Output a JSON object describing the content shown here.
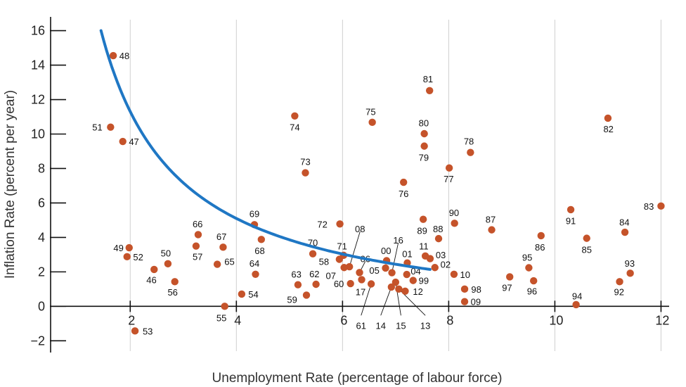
{
  "chart_data": {
    "type": "scatter",
    "xlabel": "Unemployment Rate (percentage of labour force)",
    "ylabel": "Inflation Rate (percent per year)",
    "xlim": [
      0.5,
      12.1
    ],
    "ylim": [
      -2.6,
      16.8
    ],
    "x_ticks": [
      2,
      4,
      6,
      8,
      10,
      12
    ],
    "y_ticks": [
      -2,
      0,
      2,
      4,
      6,
      8,
      10,
      12,
      14,
      16
    ],
    "grid": {
      "vertical": true,
      "horizontal": false
    },
    "colors": {
      "points": "#c5532a",
      "curve": "#1f77c4",
      "axis": "#111111",
      "grid": "#cfcfcf"
    },
    "points": [
      {
        "label": "48",
        "x": 1.68,
        "y": 14.55,
        "lx": 1.89,
        "ly": 14.55
      },
      {
        "label": "51",
        "x": 1.63,
        "y": 10.4,
        "lx": 1.38,
        "ly": 10.4
      },
      {
        "label": "47",
        "x": 1.86,
        "y": 9.57,
        "lx": 2.07,
        "ly": 9.57
      },
      {
        "label": "49",
        "x": 1.98,
        "y": 3.4,
        "lx": 1.78,
        "ly": 3.4
      },
      {
        "label": "52",
        "x": 1.94,
        "y": 2.88,
        "lx": 2.15,
        "ly": 2.88
      },
      {
        "label": "53",
        "x": 2.09,
        "y": -1.43,
        "lx": 2.33,
        "ly": -1.43
      },
      {
        "label": "46",
        "x": 2.45,
        "y": 2.14,
        "lx": 2.4,
        "ly": 1.55
      },
      {
        "label": "50",
        "x": 2.71,
        "y": 2.47,
        "lx": 2.67,
        "ly": 3.1
      },
      {
        "label": "56",
        "x": 2.84,
        "y": 1.43,
        "lx": 2.8,
        "ly": 0.83
      },
      {
        "label": "66",
        "x": 3.28,
        "y": 4.16,
        "lx": 3.27,
        "ly": 4.8
      },
      {
        "label": "57",
        "x": 3.24,
        "y": 3.5,
        "lx": 3.27,
        "ly": 2.9
      },
      {
        "label": "67",
        "x": 3.75,
        "y": 3.43,
        "lx": 3.72,
        "ly": 4.05
      },
      {
        "label": "65",
        "x": 3.64,
        "y": 2.44,
        "lx": 3.87,
        "ly": 2.6
      },
      {
        "label": "55",
        "x": 3.78,
        "y": 0.0,
        "lx": 3.72,
        "ly": -0.65
      },
      {
        "label": "54",
        "x": 4.1,
        "y": 0.71,
        "lx": 4.32,
        "ly": 0.71
      },
      {
        "label": "69",
        "x": 4.34,
        "y": 4.74,
        "lx": 4.34,
        "ly": 5.38
      },
      {
        "label": "68",
        "x": 4.47,
        "y": 3.88,
        "lx": 4.44,
        "ly": 3.25
      },
      {
        "label": "64",
        "x": 4.36,
        "y": 1.86,
        "lx": 4.34,
        "ly": 2.5
      },
      {
        "label": "74",
        "x": 5.1,
        "y": 11.05,
        "lx": 5.1,
        "ly": 10.4
      },
      {
        "label": "73",
        "x": 5.3,
        "y": 7.75,
        "lx": 5.3,
        "ly": 8.4
      },
      {
        "label": "70",
        "x": 5.44,
        "y": 3.05,
        "lx": 5.44,
        "ly": 3.7
      },
      {
        "label": "63",
        "x": 5.16,
        "y": 1.25,
        "lx": 5.13,
        "ly": 1.88
      },
      {
        "label": "62",
        "x": 5.5,
        "y": 1.28,
        "lx": 5.47,
        "ly": 1.9
      },
      {
        "label": "59",
        "x": 5.32,
        "y": 0.65,
        "lx": 5.05,
        "ly": 0.4
      },
      {
        "label": "72",
        "x": 5.95,
        "y": 4.78,
        "lx": 5.62,
        "ly": 4.78
      },
      {
        "label": "08",
        "x": 6.13,
        "y": 2.3,
        "lx": 6.33,
        "ly": 4.5,
        "leader": true
      },
      {
        "label": "71",
        "x": 6.02,
        "y": 2.96,
        "lx": 5.99,
        "ly": 3.5
      },
      {
        "label": "58",
        "x": 5.94,
        "y": 2.73,
        "lx": 5.65,
        "ly": 2.6
      },
      {
        "label": "07",
        "x": 6.03,
        "y": 2.25,
        "lx": 5.78,
        "ly": 1.8
      },
      {
        "label": "06",
        "x": 6.32,
        "y": 1.96,
        "lx": 6.43,
        "ly": 2.78,
        "leader": true
      },
      {
        "label": "60",
        "x": 6.15,
        "y": 1.32,
        "lx": 5.93,
        "ly": 1.32
      },
      {
        "label": "17",
        "x": 6.36,
        "y": 1.55,
        "lx": 6.34,
        "ly": 0.85
      },
      {
        "label": "61",
        "x": 6.54,
        "y": 1.3,
        "lx": 6.35,
        "ly": -1.1,
        "leader": true
      },
      {
        "label": "75",
        "x": 6.56,
        "y": 10.68,
        "lx": 6.53,
        "ly": 11.3
      },
      {
        "label": "00",
        "x": 6.83,
        "y": 2.65,
        "lx": 6.82,
        "ly": 3.25
      },
      {
        "label": "05",
        "x": 6.81,
        "y": 2.22,
        "lx": 6.6,
        "ly": 2.1
      },
      {
        "label": "16",
        "x": 6.93,
        "y": 1.95,
        "lx": 7.05,
        "ly": 3.85,
        "leader": true
      },
      {
        "label": "15",
        "x": 7.0,
        "y": 1.4,
        "lx": 7.1,
        "ly": -1.1,
        "leader": true
      },
      {
        "label": "14",
        "x": 6.92,
        "y": 1.12,
        "lx": 6.72,
        "ly": -1.1,
        "leader": true
      },
      {
        "label": "76",
        "x": 7.15,
        "y": 7.2,
        "lx": 7.15,
        "ly": 6.55
      },
      {
        "label": "01",
        "x": 7.22,
        "y": 2.52,
        "lx": 7.22,
        "ly": 3.05
      },
      {
        "label": "04",
        "x": 7.21,
        "y": 1.85,
        "lx": 7.38,
        "ly": 2.05
      },
      {
        "label": "99",
        "x": 7.33,
        "y": 1.5,
        "lx": 7.53,
        "ly": 1.5
      },
      {
        "label": "12",
        "x": 7.18,
        "y": 0.88,
        "lx": 7.42,
        "ly": 0.88
      },
      {
        "label": "13",
        "x": 7.06,
        "y": 1.0,
        "lx": 7.56,
        "ly": -1.1,
        "leader": true
      },
      {
        "label": "81",
        "x": 7.64,
        "y": 12.52,
        "lx": 7.61,
        "ly": 13.2
      },
      {
        "label": "80",
        "x": 7.54,
        "y": 10.02,
        "lx": 7.53,
        "ly": 10.65
      },
      {
        "label": "79",
        "x": 7.54,
        "y": 9.3,
        "lx": 7.53,
        "ly": 8.65
      },
      {
        "label": "11",
        "x": 7.56,
        "y": 2.92,
        "lx": 7.53,
        "ly": 3.5
      },
      {
        "label": "03",
        "x": 7.65,
        "y": 2.77,
        "lx": 7.85,
        "ly": 2.99
      },
      {
        "label": "02",
        "x": 7.74,
        "y": 2.25,
        "lx": 7.94,
        "ly": 2.45
      },
      {
        "label": "89",
        "x": 7.52,
        "y": 5.05,
        "lx": 7.5,
        "ly": 4.4
      },
      {
        "label": "88",
        "x": 7.81,
        "y": 3.93,
        "lx": 7.8,
        "ly": 4.5
      },
      {
        "label": "77",
        "x": 8.01,
        "y": 8.03,
        "lx": 8.0,
        "ly": 7.4
      },
      {
        "label": "78",
        "x": 8.41,
        "y": 8.93,
        "lx": 8.38,
        "ly": 9.6
      },
      {
        "label": "90",
        "x": 8.11,
        "y": 4.82,
        "lx": 8.1,
        "ly": 5.45
      },
      {
        "label": "10",
        "x": 8.1,
        "y": 1.86,
        "lx": 8.31,
        "ly": 1.86
      },
      {
        "label": "98",
        "x": 8.3,
        "y": 1.0,
        "lx": 8.52,
        "ly": 1.0
      },
      {
        "label": "09",
        "x": 8.3,
        "y": 0.27,
        "lx": 8.51,
        "ly": 0.27
      },
      {
        "label": "87",
        "x": 8.81,
        "y": 4.44,
        "lx": 8.79,
        "ly": 5.05
      },
      {
        "label": "97",
        "x": 9.15,
        "y": 1.71,
        "lx": 9.1,
        "ly": 1.1
      },
      {
        "label": "95",
        "x": 9.51,
        "y": 2.24,
        "lx": 9.48,
        "ly": 2.85
      },
      {
        "label": "96",
        "x": 9.6,
        "y": 1.48,
        "lx": 9.57,
        "ly": 0.9
      },
      {
        "label": "86",
        "x": 9.74,
        "y": 4.1,
        "lx": 9.72,
        "ly": 3.45
      },
      {
        "label": "91",
        "x": 10.3,
        "y": 5.61,
        "lx": 10.3,
        "ly": 4.98
      },
      {
        "label": "85",
        "x": 10.6,
        "y": 3.95,
        "lx": 10.6,
        "ly": 3.3
      },
      {
        "label": "94",
        "x": 10.4,
        "y": 0.1,
        "lx": 10.42,
        "ly": 0.6
      },
      {
        "label": "82",
        "x": 11.0,
        "y": 10.92,
        "lx": 11.01,
        "ly": 10.3
      },
      {
        "label": "84",
        "x": 11.32,
        "y": 4.3,
        "lx": 11.31,
        "ly": 4.9
      },
      {
        "label": "93",
        "x": 11.42,
        "y": 1.92,
        "lx": 11.41,
        "ly": 2.5
      },
      {
        "label": "92",
        "x": 11.22,
        "y": 1.43,
        "lx": 11.21,
        "ly": 0.85
      },
      {
        "label": "83",
        "x": 12.0,
        "y": 5.82,
        "lx": 11.77,
        "ly": 5.82
      }
    ],
    "curve": {
      "type": "hyperbola",
      "a": -1.1,
      "b": 24.8,
      "x0": 0.0,
      "x_from": 1.45,
      "x_to": 7.65
    }
  }
}
